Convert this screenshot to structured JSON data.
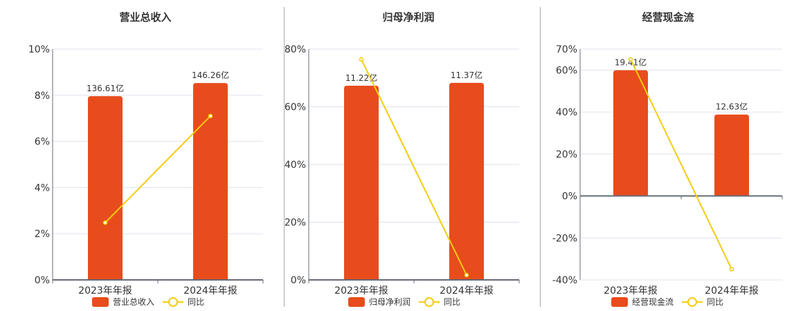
{
  "colors": {
    "bar": "#E84C1C",
    "line": "#F5CC0F",
    "grid": "#dde3ee",
    "axis": "#666b75"
  },
  "chart_data": [
    {
      "type": "bar+line",
      "title": "营业总收入",
      "categories": [
        "2023年年报",
        "2024年年报"
      ],
      "series": [
        {
          "name": "营业总收入",
          "type": "bar",
          "labels": [
            "136.61亿",
            "146.26亿"
          ],
          "values": [
            136.61,
            146.26
          ],
          "bar_height_pct": [
            7.96,
            8.53
          ]
        },
        {
          "name": "同比",
          "type": "line",
          "values": [
            2.48,
            7.1
          ]
        }
      ],
      "y_ticks": [
        "0%",
        "2%",
        "4%",
        "6%",
        "8%",
        "10%"
      ],
      "ylim": [
        0,
        10
      ],
      "grid": true,
      "legend_position": "bottom"
    },
    {
      "type": "bar+line",
      "title": "归母净利润",
      "categories": [
        "2023年年报",
        "2024年年报"
      ],
      "series": [
        {
          "name": "归母净利润",
          "type": "bar",
          "labels": [
            "11.22亿",
            "11.37亿"
          ],
          "values": [
            11.22,
            11.37
          ],
          "bar_height_pct": [
            67.3,
            68.3
          ]
        },
        {
          "name": "同比",
          "type": "line",
          "values": [
            76.4,
            1.68
          ]
        }
      ],
      "y_ticks": [
        "0%",
        "20%",
        "40%",
        "60%",
        "80%"
      ],
      "ylim": [
        0,
        80
      ],
      "grid": true,
      "legend_position": "bottom"
    },
    {
      "type": "bar+line",
      "title": "经营现金流",
      "categories": [
        "2023年年报",
        "2024年年报"
      ],
      "series": [
        {
          "name": "经营现金流",
          "type": "bar",
          "labels": [
            "19.41亿",
            "12.63亿"
          ],
          "values": [
            19.41,
            12.63
          ],
          "bar_height_pct": [
            59.9,
            38.8
          ]
        },
        {
          "name": "同比",
          "type": "line",
          "values": [
            65.1,
            -34.9
          ]
        }
      ],
      "y_ticks": [
        "-40%",
        "-20%",
        "0%",
        "20%",
        "40%",
        "60%",
        "70%"
      ],
      "ylim": [
        -40,
        70
      ],
      "grid": true,
      "legend_position": "bottom"
    }
  ],
  "panels": [
    {
      "title": "营业总收入",
      "legend_bar": "营业总收入",
      "legend_line": "同比"
    },
    {
      "title": "归母净利润",
      "legend_bar": "归母净利润",
      "legend_line": "同比"
    },
    {
      "title": "经营现金流",
      "legend_bar": "经营现金流",
      "legend_line": "同比"
    }
  ]
}
